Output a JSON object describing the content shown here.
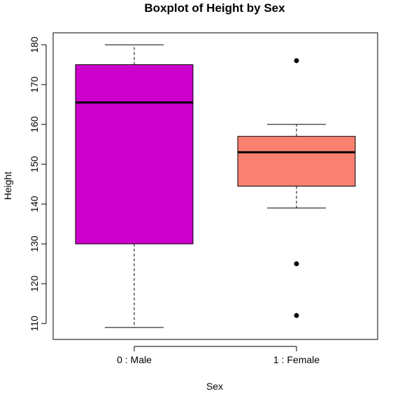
{
  "chart_data": {
    "type": "boxplot",
    "title": "Boxplot of Height by Sex",
    "xlabel": "Sex",
    "ylabel": "Height",
    "ylim": [
      106,
      183
    ],
    "yticks": [
      110,
      120,
      130,
      140,
      150,
      160,
      170,
      180
    ],
    "ytick_labels": [
      "110",
      "120",
      "130",
      "140",
      "150",
      "160",
      "170",
      "180"
    ],
    "grid": false,
    "boxes": [
      {
        "category": "0 : Male",
        "color": "#CC00CC",
        "whisker_low": 109,
        "q1": 130,
        "median": 165.5,
        "q3": 175,
        "whisker_high": 180,
        "outliers": []
      },
      {
        "category": "1 : Female",
        "color": "#FA8072",
        "whisker_low": 139,
        "q1": 144.5,
        "median": 153,
        "q3": 157,
        "whisker_high": 160,
        "outliers": [
          176,
          125,
          112
        ]
      }
    ]
  }
}
